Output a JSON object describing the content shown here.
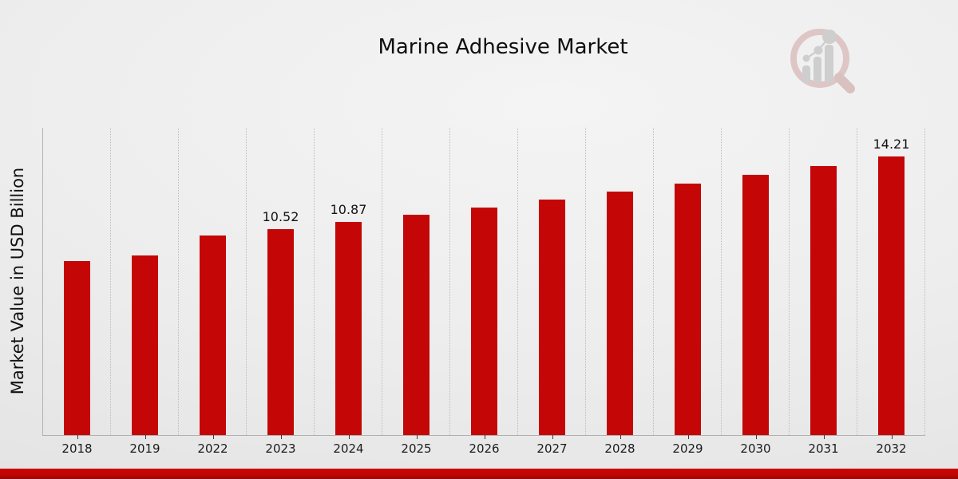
{
  "chart_data": {
    "type": "bar",
    "title": "Marine Adhesive Market",
    "xlabel": "",
    "ylabel": "Market Value in USD Billion",
    "categories": [
      "2018",
      "2019",
      "2022",
      "2023",
      "2024",
      "2025",
      "2026",
      "2027",
      "2028",
      "2029",
      "2030",
      "2031",
      "2032"
    ],
    "values": [
      8.89,
      9.18,
      10.2,
      10.52,
      10.87,
      11.24,
      11.62,
      12.02,
      12.43,
      12.85,
      13.29,
      13.74,
      14.21
    ],
    "bar_labels": [
      "",
      "",
      "",
      "10.52",
      "10.87",
      "",
      "",
      "",
      "",
      "",
      "",
      "",
      "14.21"
    ],
    "ylim": [
      0,
      15.6
    ],
    "grid": "vertical-dotted",
    "legend": "none",
    "bar_color": "#c50606",
    "accent_color": "#c10505",
    "logo_ring_color": "#dcbfbf",
    "logo_bar_color": "#c9c9c9"
  }
}
